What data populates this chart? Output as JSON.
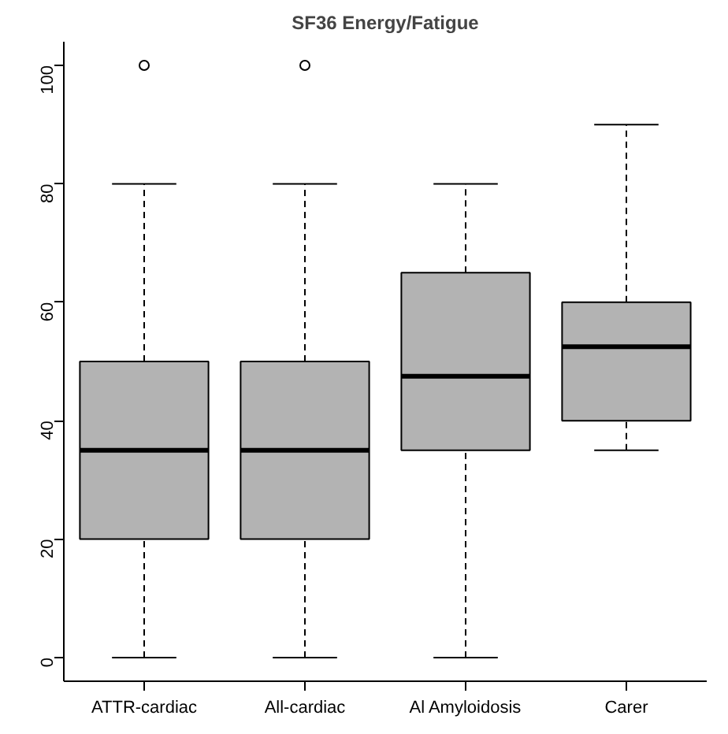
{
  "chart_data": {
    "type": "box",
    "title": "SF36 Energy/Fatigue",
    "categories": [
      "ATTR-cardiac",
      "All-cardiac",
      "Al Amyloidosis",
      "Carer"
    ],
    "boxes": [
      {
        "low": 0,
        "q1": 20,
        "median": 35,
        "q3": 50,
        "high": 80,
        "outliers": [
          100
        ]
      },
      {
        "low": 0,
        "q1": 20,
        "median": 35,
        "q3": 50,
        "high": 80,
        "outliers": [
          100
        ]
      },
      {
        "low": 0,
        "q1": 35,
        "median": 47.5,
        "q3": 65,
        "high": 80
      },
      {
        "low": 35,
        "q1": 40,
        "median": 52.5,
        "q3": 60,
        "high": 90
      }
    ],
    "color": "#b3b3b3",
    "ylim": [
      -4,
      104
    ],
    "yticks": [
      0,
      20,
      40,
      60,
      80,
      100
    ],
    "grid": false
  }
}
